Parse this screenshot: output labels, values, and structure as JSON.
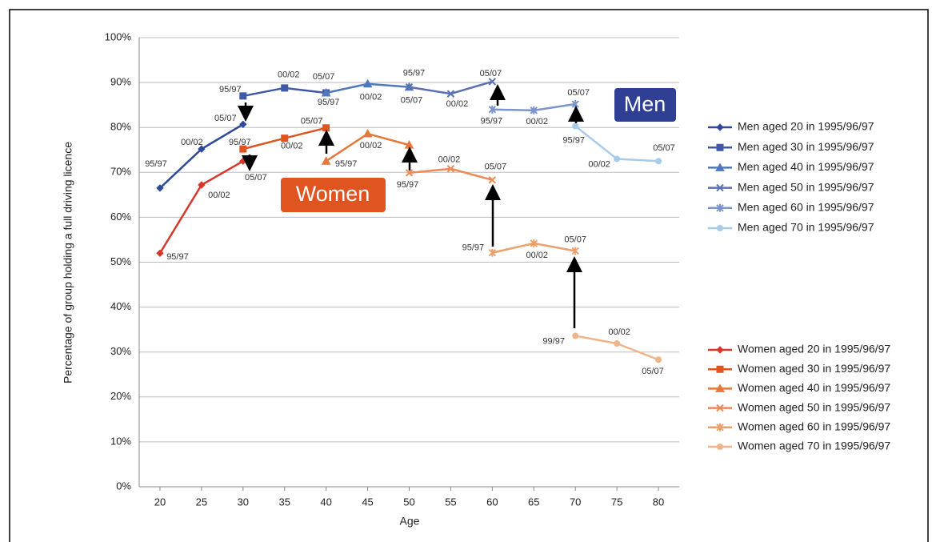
{
  "chart_data": {
    "type": "line",
    "x_label": "Age",
    "y_label": "Percentage of group holding a full driving licence",
    "annotations": [
      "Men",
      "Women"
    ],
    "xlim": [
      17.5,
      82.5
    ],
    "xticks": [
      20,
      25,
      30,
      35,
      40,
      45,
      50,
      55,
      60,
      65,
      70,
      75,
      80
    ],
    "ylim": [
      0,
      100
    ],
    "yticks": [
      {
        "value": 0,
        "label": "0%"
      },
      {
        "value": 10,
        "label": "10%"
      },
      {
        "value": 20,
        "label": "20%"
      },
      {
        "value": 30,
        "label": "30%"
      },
      {
        "value": 40,
        "label": "40%"
      },
      {
        "value": 50,
        "label": "50%"
      },
      {
        "value": 60,
        "label": "60%"
      },
      {
        "value": 70,
        "label": "70%"
      },
      {
        "value": 80,
        "label": "80%"
      },
      {
        "value": 90,
        "label": "90%"
      },
      {
        "value": 100,
        "label": "100%"
      }
    ],
    "grid": true,
    "legend": "right",
    "series": [
      {
        "name": "Men aged 20 in 1995/96/97",
        "color": "#2e4a9a",
        "marker": "diamond",
        "x": [
          20,
          25,
          30
        ],
        "values": [
          66.5,
          75.2,
          80.7
        ],
        "point_labels": [
          "95/97",
          "00/02",
          "05/07"
        ]
      },
      {
        "name": "Men aged 30 in 1995/96/97",
        "color": "#4058a8",
        "marker": "square",
        "x": [
          30,
          35,
          40
        ],
        "values": [
          87.0,
          88.8,
          87.7
        ],
        "point_labels": [
          "95/97",
          "00/02",
          "05/07"
        ]
      },
      {
        "name": "Men aged 40 in 1995/96/97",
        "color": "#4f78bd",
        "marker": "triangle",
        "x": [
          40,
          45,
          50
        ],
        "values": [
          87.7,
          89.7,
          89.0
        ],
        "point_labels": [
          "95/97",
          "00/02",
          "05/07"
        ]
      },
      {
        "name": "Men aged 50 in 1995/96/97",
        "color": "#5b6fb3",
        "marker": "cross",
        "x": [
          50,
          55,
          60
        ],
        "values": [
          89.0,
          87.5,
          90.2
        ],
        "point_labels": [
          "95/97",
          "00/02",
          "05/07"
        ]
      },
      {
        "name": "Men aged 60 in 1995/96/97",
        "color": "#7b95cc",
        "marker": "star",
        "x": [
          60,
          65,
          70
        ],
        "values": [
          84.0,
          83.8,
          85.2
        ],
        "point_labels": [
          "95/97",
          "00/02",
          "05/07"
        ]
      },
      {
        "name": "Men aged 70 in 1995/96/97",
        "color": "#a8cbe8",
        "marker": "circle",
        "x": [
          70,
          75,
          80
        ],
        "values": [
          80.3,
          73.0,
          72.5
        ],
        "point_labels": [
          "95/97",
          "00/02",
          "05/07"
        ]
      },
      {
        "name": "Women aged 20 in 1995/96/97",
        "color": "#d9362a",
        "marker": "diamond",
        "x": [
          20,
          25,
          30
        ],
        "values": [
          52.0,
          67.2,
          72.5
        ],
        "point_labels": [
          "95/97",
          "00/02",
          "05/07"
        ]
      },
      {
        "name": "Women aged 30 in 1995/96/97",
        "color": "#df5520",
        "marker": "square",
        "x": [
          30,
          35,
          40
        ],
        "values": [
          75.2,
          77.6,
          79.9
        ],
        "point_labels": [
          "95/97",
          "00/02",
          "05/07"
        ]
      },
      {
        "name": "Women aged 40 in 1995/96/97",
        "color": "#e5783a",
        "marker": "triangle",
        "x": [
          40,
          45,
          50
        ],
        "values": [
          72.5,
          78.6,
          76.1
        ],
        "point_labels": [
          "95/97",
          "00/02",
          null
        ]
      },
      {
        "name": "Women aged 50 in 1995/96/97",
        "color": "#ea8a55",
        "marker": "cross",
        "x": [
          50,
          55,
          60
        ],
        "values": [
          69.9,
          70.8,
          68.3
        ],
        "point_labels": [
          "95/97",
          "00/02",
          "05/07"
        ]
      },
      {
        "name": "Women aged 60 in 1995/96/97",
        "color": "#eba06e",
        "marker": "star",
        "x": [
          60,
          65,
          70
        ],
        "values": [
          52.1,
          54.2,
          52.5
        ],
        "point_labels": [
          "95/97",
          "00/02",
          "05/07"
        ]
      },
      {
        "name": "Women aged 70 in 1995/96/97",
        "color": "#f0b48a",
        "marker": "circle",
        "x": [
          70,
          75,
          80
        ],
        "values": [
          33.6,
          31.9,
          28.3
        ],
        "point_labels": [
          "99/97",
          "00/02",
          "05/07"
        ]
      }
    ]
  }
}
